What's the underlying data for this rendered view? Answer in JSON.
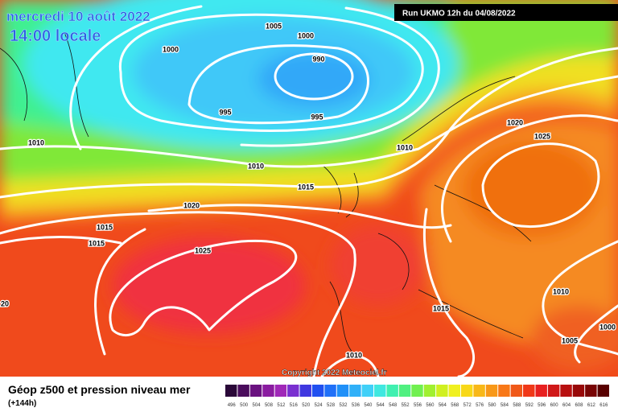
{
  "header": {
    "date": "mercredi 10 août 2022",
    "time": "14:00 locale",
    "run": "Run UKMO 12h du 04/08/2022"
  },
  "isobars": [
    1005,
    1000,
    1000,
    990,
    995,
    995,
    1010,
    1010,
    1010,
    1015,
    1020,
    1020,
    1025,
    1015,
    1015,
    1025,
    "20",
    1015,
    1010,
    1005,
    1000,
    1010
  ],
  "copyright": "Copyright 2022 Meteociel.fr",
  "footer": {
    "title": "Géop z500 et pression niveau mer",
    "lead": "(+144h)"
  },
  "scale": {
    "labels": [
      496,
      500,
      504,
      508,
      512,
      516,
      520,
      524,
      528,
      532,
      536,
      540,
      544,
      548,
      552,
      556,
      560,
      564,
      568,
      572,
      576,
      580,
      584,
      588,
      592,
      596,
      600,
      604,
      608,
      612,
      616
    ],
    "colors": [
      "#2a0838",
      "#4a0c5c",
      "#6a1280",
      "#8a1ca0",
      "#a028b8",
      "#7a30d0",
      "#4038e0",
      "#2050f0",
      "#2070f8",
      "#2090f8",
      "#30b0f8",
      "#40d0f8",
      "#40e8e0",
      "#40f0b0",
      "#50f080",
      "#70f050",
      "#a0f030",
      "#d0f020",
      "#f0f020",
      "#f8d818",
      "#f8b818",
      "#f89818",
      "#f87818",
      "#f05818",
      "#f03818",
      "#e82020",
      "#d01818",
      "#b81010",
      "#980808",
      "#780404",
      "#580000"
    ]
  }
}
